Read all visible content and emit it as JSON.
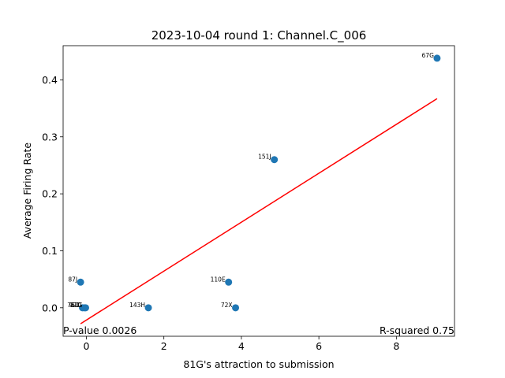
{
  "chart_data": {
    "type": "scatter",
    "title": "2023-10-04 round 1: Channel.C_006",
    "xlabel": "81G's attraction to submission",
    "ylabel": "Average Firing Rate",
    "xlim": [
      -0.6,
      9.5
    ],
    "ylim": [
      -0.05,
      0.46
    ],
    "xticks": [
      0,
      2,
      4,
      6,
      8
    ],
    "yticks": [
      0.0,
      0.1,
      0.2,
      0.3,
      0.4
    ],
    "xtick_labels": [
      "0",
      "2",
      "4",
      "6",
      "8"
    ],
    "ytick_labels": [
      "0.0",
      "0.1",
      "0.2",
      "0.3",
      "0.4"
    ],
    "grid": false,
    "points": [
      {
        "label": "67G",
        "x": 9.05,
        "y": 0.438
      },
      {
        "label": "151J",
        "x": 4.85,
        "y": 0.26
      },
      {
        "label": "87J",
        "x": -0.15,
        "y": 0.045
      },
      {
        "label": "110E",
        "x": 3.67,
        "y": 0.045
      },
      {
        "label": "76D",
        "x": -0.1,
        "y": 0.0
      },
      {
        "label": "92D",
        "x": -0.05,
        "y": 0.0
      },
      {
        "label": "81G",
        "x": -0.02,
        "y": 0.0
      },
      {
        "label": "143H",
        "x": 1.6,
        "y": 0.0
      },
      {
        "label": "72X",
        "x": 3.85,
        "y": 0.0
      }
    ],
    "fit_line": {
      "x": [
        -0.15,
        9.05
      ],
      "y": [
        -0.028,
        0.367
      ]
    },
    "p_value_text": "P-value 0.0026",
    "r_squared_text": "R-squared 0.75",
    "point_color": "#1f77b4",
    "fit_color": "#ff0000"
  }
}
